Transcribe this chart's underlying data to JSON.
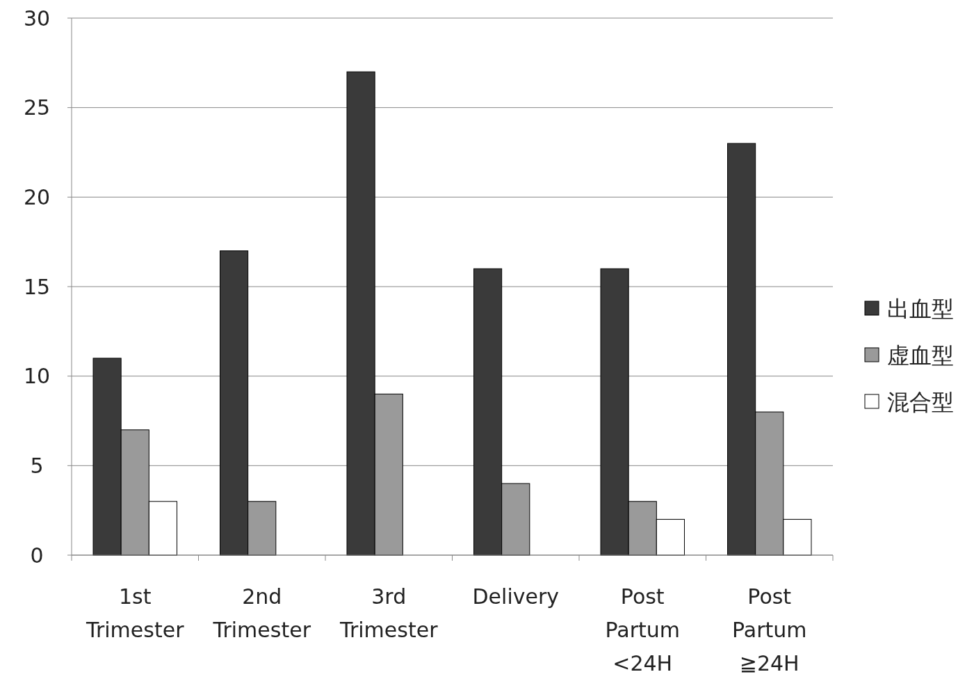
{
  "chart_data": {
    "type": "bar",
    "categories": [
      "1st Trimester",
      "2nd Trimester",
      "3rd Trimester",
      "Delivery",
      "Post Partum <24H",
      "Post Partum ≧24H"
    ],
    "series": [
      {
        "name": "出血型",
        "color": "#3a3a3a",
        "values": [
          11,
          17,
          27,
          16,
          16,
          23
        ]
      },
      {
        "name": "虚血型",
        "color": "#9a9a9a",
        "values": [
          7,
          3,
          9,
          4,
          3,
          8
        ]
      },
      {
        "name": "混合型",
        "color": "#ffffff",
        "values": [
          3,
          0,
          0,
          0,
          2,
          2
        ]
      }
    ],
    "ylim": [
      0,
      30
    ],
    "yticks": [
      0,
      5,
      10,
      15,
      20,
      25,
      30
    ],
    "grid": "y",
    "legend": "right"
  }
}
